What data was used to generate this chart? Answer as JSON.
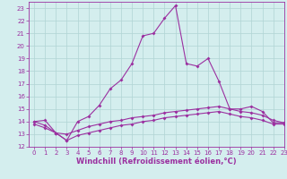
{
  "xlabel": "Windchill (Refroidissement éolien,°C)",
  "x_hours": [
    0,
    1,
    2,
    3,
    4,
    5,
    6,
    7,
    8,
    9,
    10,
    11,
    12,
    13,
    14,
    15,
    16,
    17,
    18,
    19,
    20,
    21,
    22,
    23
  ],
  "line1": [
    14.0,
    13.7,
    13.1,
    12.5,
    14.0,
    14.4,
    15.3,
    16.6,
    17.3,
    18.6,
    20.8,
    21.0,
    22.2,
    23.2,
    18.6,
    18.4,
    19.0,
    17.2,
    15.0,
    15.0,
    15.2,
    14.8,
    13.9,
    13.9
  ],
  "line2": [
    14.0,
    14.1,
    13.1,
    13.0,
    13.3,
    13.6,
    13.8,
    14.0,
    14.1,
    14.3,
    14.4,
    14.5,
    14.7,
    14.8,
    14.9,
    15.0,
    15.1,
    15.2,
    15.0,
    14.8,
    14.7,
    14.5,
    14.1,
    13.9
  ],
  "line3": [
    13.8,
    13.5,
    13.1,
    12.5,
    12.9,
    13.1,
    13.3,
    13.5,
    13.7,
    13.8,
    14.0,
    14.1,
    14.3,
    14.4,
    14.5,
    14.6,
    14.7,
    14.8,
    14.6,
    14.4,
    14.3,
    14.1,
    13.8,
    13.8
  ],
  "color": "#9b30a0",
  "bg_color": "#d4eeee",
  "grid_color": "#b0d4d4",
  "ylim": [
    12,
    23.5
  ],
  "xlim": [
    -0.5,
    23
  ],
  "yticks": [
    12,
    13,
    14,
    15,
    16,
    17,
    18,
    19,
    20,
    21,
    22,
    23
  ],
  "xticks": [
    0,
    1,
    2,
    3,
    4,
    5,
    6,
    7,
    8,
    9,
    10,
    11,
    12,
    13,
    14,
    15,
    16,
    17,
    18,
    19,
    20,
    21,
    22,
    23
  ],
  "markersize": 2.0,
  "linewidth": 0.8,
  "tick_fontsize": 5.0,
  "label_fontsize": 6.0
}
